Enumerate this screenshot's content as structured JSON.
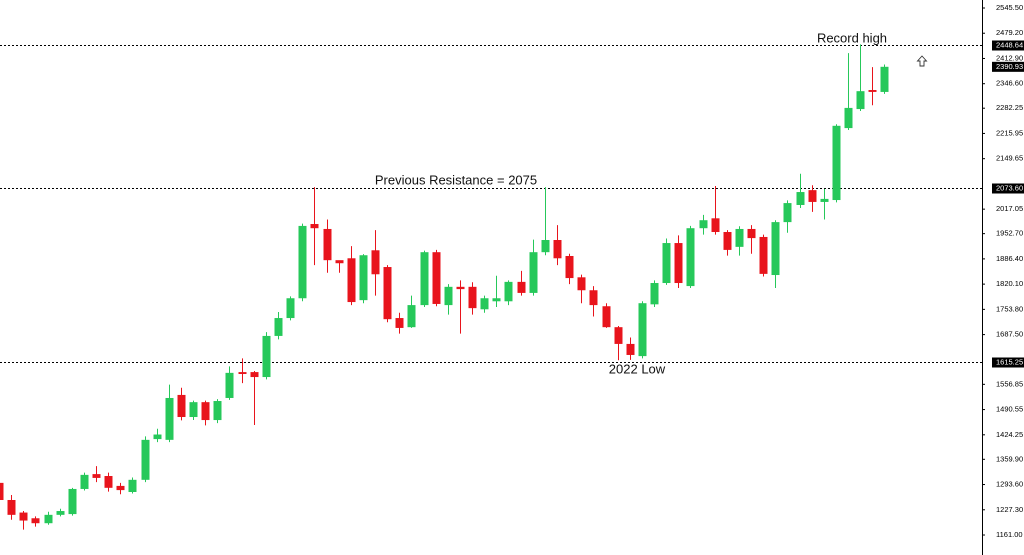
{
  "chart_data": {
    "type": "candlestick",
    "up_color": "#26c85a",
    "down_color": "#e8141c",
    "ylim": [
      1108.5,
      2566.5
    ],
    "yticks": [
      {
        "value": 2545.5,
        "label": "2545.50"
      },
      {
        "value": 2479.2,
        "label": "2479.20"
      },
      {
        "value": 2412.9,
        "label": "2412.90"
      },
      {
        "value": 2346.6,
        "label": "2346.60"
      },
      2282.25,
      2215.95,
      2149.65,
      2017.05,
      {
        "value": 1952.7,
        "label": "1952.70"
      },
      {
        "value": 1886.4,
        "label": "1886.40"
      },
      {
        "value": 1820.1,
        "label": "1820.10"
      },
      {
        "value": 1753.8,
        "label": "1753.80"
      },
      {
        "value": 1687.5,
        "label": "1687.50"
      },
      1556.85,
      1490.55,
      1424.25,
      {
        "value": 1359.9,
        "label": "1359.90"
      },
      {
        "value": 1293.6,
        "label": "1293.60"
      },
      {
        "value": 1227.3,
        "label": "1227.30"
      },
      {
        "value": 1161,
        "label": "1161.00"
      }
    ],
    "levels": [
      2448.64,
      {
        "value": 2073.6,
        "label": "2073.60"
      },
      1615.25
    ],
    "last_price": 2390.93,
    "annotations": [
      "Record high",
      "Previous Resistance = 2075",
      "2022 Low"
    ],
    "open": [
      1298,
      1253,
      1220,
      1205,
      1192,
      1214,
      1216,
      1282,
      1321,
      1316,
      1290,
      1274,
      1306,
      1413,
      1411,
      1529,
      1471,
      1510,
      1463,
      1521,
      1589,
      1589,
      1576,
      1684,
      1731,
      1783,
      1978,
      1965,
      1883,
      1888,
      1778,
      1909,
      1865,
      1731,
      1707,
      1765,
      1904,
      1765,
      1813,
      1813,
      1754,
      1775,
      1775,
      1826,
      1797,
      1904,
      1936,
      1894,
      1838,
      1804,
      1762,
      1707,
      1663,
      1631,
      1767,
      1823,
      1928,
      1815,
      1967,
      1993,
      1957,
      1918,
      1965,
      1944,
      1844,
      1983,
      2028,
      2067,
      2036,
      2041,
      2230,
      2280,
      2330,
      2325
    ],
    "high": [
      1306,
      1266,
      1224,
      1210,
      1222,
      1230,
      1285,
      1325,
      1342,
      1325,
      1298,
      1312,
      1420,
      1440,
      1556,
      1548,
      1514,
      1514,
      1518,
      1604,
      1625,
      1592,
      1694,
      1747,
      1788,
      1979,
      2075,
      1990,
      1880,
      1920,
      1899,
      1962,
      1870,
      1745,
      1790,
      1908,
      1910,
      1820,
      1830,
      1825,
      1790,
      1842,
      1830,
      1855,
      1937,
      2075,
      1975,
      1900,
      1845,
      1815,
      1770,
      1710,
      1680,
      1775,
      1830,
      1940,
      1948,
      1973,
      2002,
      2078,
      1962,
      1972,
      1975,
      1950,
      1988,
      2040,
      2110,
      2080,
      2070,
      2240,
      2427,
      2450,
      2390,
      2397
    ],
    "low": [
      1240,
      1201,
      1175,
      1183,
      1188,
      1210,
      1212,
      1278,
      1300,
      1275,
      1268,
      1270,
      1300,
      1405,
      1405,
      1462,
      1463,
      1449,
      1455,
      1516,
      1560,
      1450,
      1570,
      1675,
      1725,
      1775,
      1870,
      1850,
      1850,
      1765,
      1770,
      1790,
      1720,
      1690,
      1705,
      1760,
      1762,
      1740,
      1690,
      1740,
      1745,
      1760,
      1765,
      1790,
      1790,
      1896,
      1870,
      1820,
      1770,
      1735,
      1705,
      1620,
      1621,
      1625,
      1760,
      1818,
      1810,
      1810,
      1950,
      1950,
      1895,
      1895,
      1900,
      1840,
      1810,
      1955,
      2020,
      2010,
      1990,
      2035,
      2225,
      2275,
      2290,
      2320
    ],
    "close": [
      1253,
      1214,
      1199,
      1192,
      1214,
      1224,
      1282,
      1319,
      1311,
      1285,
      1279,
      1306,
      1411,
      1425,
      1521,
      1471,
      1510,
      1463,
      1513,
      1587,
      1584,
      1576,
      1684,
      1731,
      1783,
      1973,
      1967,
      1883,
      1875,
      1773,
      1896,
      1846,
      1728,
      1705,
      1765,
      1904,
      1768,
      1813,
      1807,
      1757,
      1783,
      1783,
      1826,
      1797,
      1904,
      1936,
      1888,
      1836,
      1804,
      1765,
      1707,
      1663,
      1634,
      1770,
      1823,
      1928,
      1823,
      1967,
      1988,
      1957,
      1910,
      1965,
      1941,
      1847,
      1983,
      2033,
      2062,
      2036,
      2044,
      2236,
      2283,
      2327,
      2325,
      2391
    ]
  }
}
